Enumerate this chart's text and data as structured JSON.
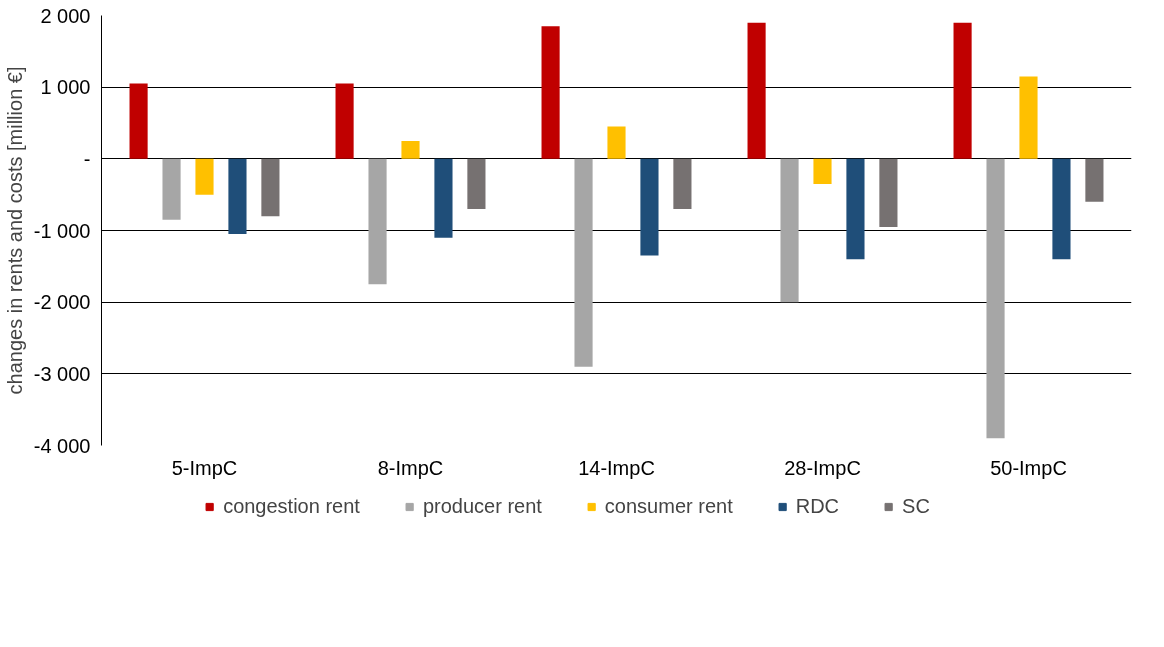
{
  "chart_data": {
    "type": "bar",
    "ylabel": "changes in rents and costs [million €]",
    "categories": [
      "5-ImpC",
      "8-ImpC",
      "14-ImpC",
      "28-ImpC",
      "50-ImpC"
    ],
    "series": [
      {
        "name": "congestion rent",
        "color": "#c00000",
        "values": [
          1050,
          1050,
          1850,
          1900,
          1900
        ]
      },
      {
        "name": "producer rent",
        "color": "#a6a6a6",
        "values": [
          -850,
          -1750,
          -2900,
          -2000,
          -3900
        ]
      },
      {
        "name": "consumer rent",
        "color": "#ffc000",
        "values": [
          -500,
          250,
          450,
          -350,
          1150
        ]
      },
      {
        "name": "RDC",
        "color": "#1f4e79",
        "values": [
          -1050,
          -1100,
          -1350,
          -1400,
          -1400
        ]
      },
      {
        "name": "SC",
        "color": "#767171",
        "values": [
          -800,
          -700,
          -700,
          -950,
          -600
        ]
      }
    ],
    "ylim": [
      -4000,
      2000
    ],
    "yticks": [
      {
        "value": -4000,
        "label": "-4 000"
      },
      {
        "value": -3000,
        "label": "-3 000"
      },
      {
        "value": -2000,
        "label": "-2 000"
      },
      {
        "value": -1000,
        "label": "-1 000"
      },
      {
        "value": 0,
        "label": "-"
      },
      {
        "value": 1000,
        "label": "1 000"
      },
      {
        "value": 2000,
        "label": "2 000"
      }
    ],
    "grid": "y",
    "legend": "bottom"
  }
}
